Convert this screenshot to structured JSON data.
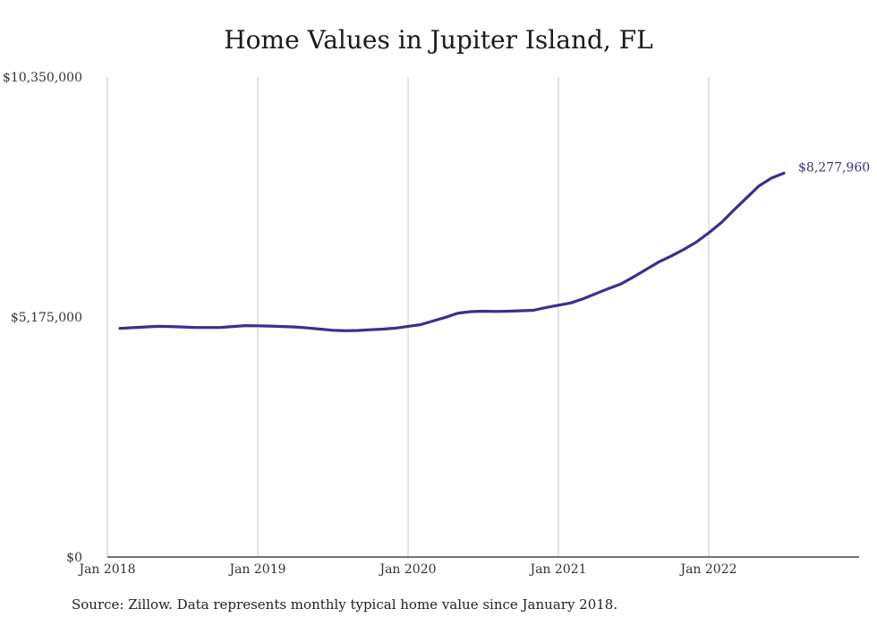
{
  "title": "Home Values in Jupiter Island, FL",
  "source": "Source: Zillow. Data represents monthly typical home value since January 2018.",
  "colors": {
    "line": "#3b2f8f",
    "grid": "#c8c8c8",
    "axis": "#222222"
  },
  "chart_data": {
    "type": "line",
    "title": "Home Values in Jupiter Island, FL",
    "xlabel": "",
    "ylabel": "",
    "ylim": [
      0,
      10350000
    ],
    "yticks": [
      0,
      5175000,
      10350000
    ],
    "ytick_labels": [
      "$0",
      "$5,175,000",
      "$10,350,000"
    ],
    "xticks": [
      "Jan 2018",
      "Jan 2019",
      "Jan 2020",
      "Jan 2021",
      "Jan 2022"
    ],
    "grid": "vertical",
    "end_label": "$8,277,960",
    "x": [
      "2018-02",
      "2018-03",
      "2018-04",
      "2018-05",
      "2018-06",
      "2018-07",
      "2018-08",
      "2018-09",
      "2018-10",
      "2018-11",
      "2018-12",
      "2019-01",
      "2019-02",
      "2019-03",
      "2019-04",
      "2019-05",
      "2019-06",
      "2019-07",
      "2019-08",
      "2019-09",
      "2019-10",
      "2019-11",
      "2019-12",
      "2020-01",
      "2020-02",
      "2020-03",
      "2020-04",
      "2020-05",
      "2020-06",
      "2020-07",
      "2020-08",
      "2020-09",
      "2020-10",
      "2020-11",
      "2020-12",
      "2021-01",
      "2021-02",
      "2021-03",
      "2021-04",
      "2021-05",
      "2021-06",
      "2021-07",
      "2021-08",
      "2021-09",
      "2021-10",
      "2021-11",
      "2021-12",
      "2022-01",
      "2022-02",
      "2022-03",
      "2022-04",
      "2022-05",
      "2022-06",
      "2022-07"
    ],
    "series": [
      {
        "values": [
          4930000,
          4945000,
          4960000,
          4975000,
          4970000,
          4960000,
          4950000,
          4950000,
          4950000,
          4970000,
          4990000,
          4985000,
          4980000,
          4970000,
          4960000,
          4940000,
          4915000,
          4890000,
          4880000,
          4885000,
          4900000,
          4915000,
          4935000,
          4975000,
          5010000,
          5090000,
          5170000,
          5260000,
          5290000,
          5300000,
          5295000,
          5300000,
          5310000,
          5320000,
          5380000,
          5430000,
          5480000,
          5570000,
          5680000,
          5790000,
          5890000,
          6040000,
          6200000,
          6360000,
          6490000,
          6630000,
          6790000,
          6990000,
          7210000,
          7480000,
          7740000,
          8000000,
          8170000,
          8277960
        ]
      }
    ]
  }
}
